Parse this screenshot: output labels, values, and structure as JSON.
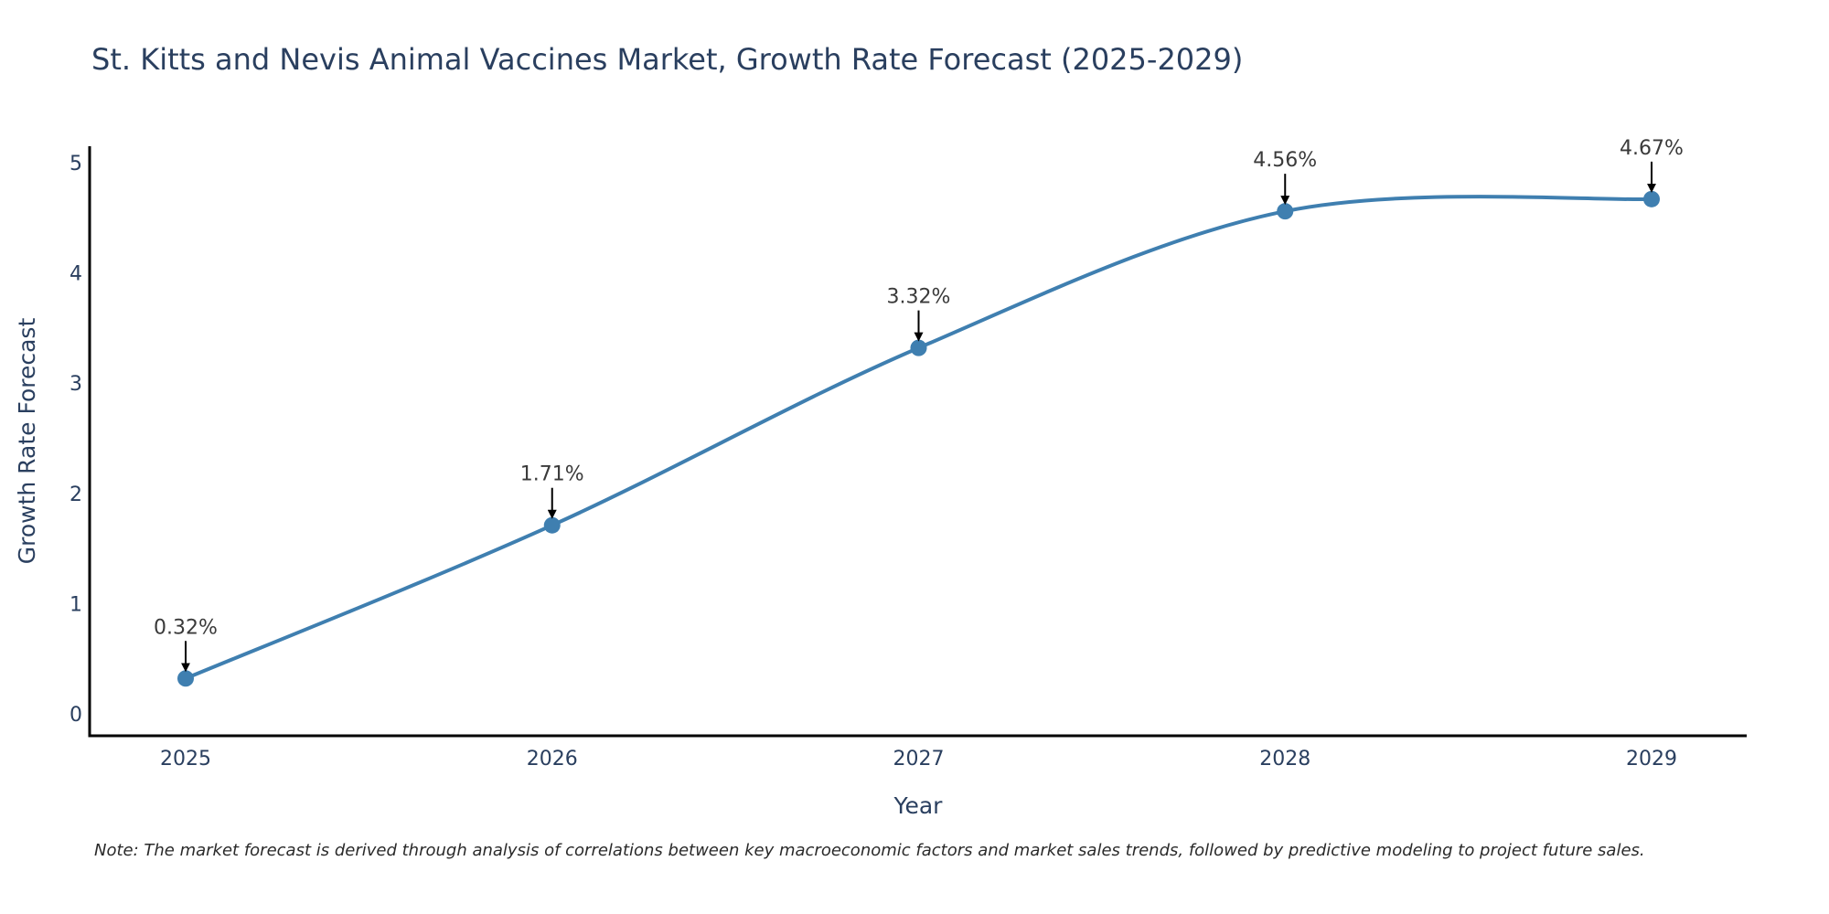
{
  "chart_data": {
    "type": "line",
    "title": "St. Kitts and Nevis Animal Vaccines Market, Growth Rate Forecast (2025-2029)",
    "xlabel": "Year",
    "ylabel": "Growth Rate Forecast",
    "categories": [
      "2025",
      "2026",
      "2027",
      "2028",
      "2029"
    ],
    "series": [
      {
        "name": "Growth Rate Forecast",
        "values": [
          0.32,
          1.71,
          3.32,
          4.56,
          4.67
        ],
        "labels": [
          "0.32%",
          "1.71%",
          "3.32%",
          "4.56%",
          "4.67%"
        ]
      }
    ],
    "yticks": [
      "0",
      "1",
      "2",
      "3",
      "4",
      "5"
    ],
    "ylim": [
      -0.2,
      5.15
    ],
    "grid": false,
    "line_color": "#3f7fb0",
    "note": "Note: The market forecast is derived through analysis of correlations between key macroeconomic factors and market sales trends, followed by predictive modeling to project future sales."
  }
}
